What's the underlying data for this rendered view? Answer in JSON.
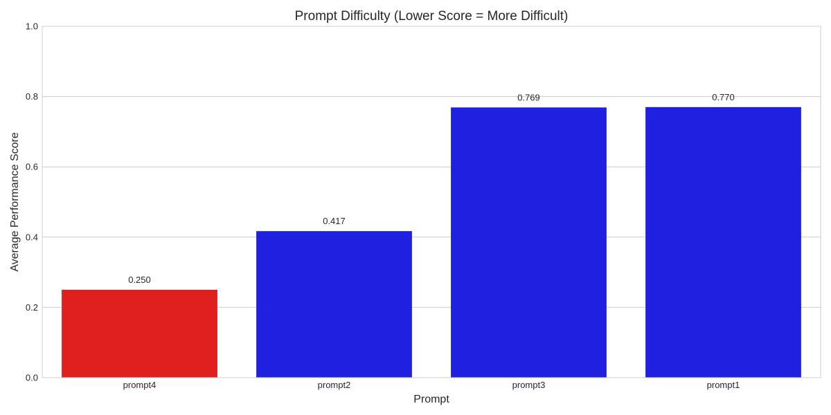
{
  "chart_data": {
    "type": "bar",
    "title": "Prompt Difficulty (Lower Score = More Difficult)",
    "xlabel": "Prompt",
    "ylabel": "Average Performance Score",
    "categories": [
      "prompt4",
      "prompt2",
      "prompt3",
      "prompt1"
    ],
    "values": [
      0.25,
      0.417,
      0.769,
      0.77
    ],
    "value_labels": [
      "0.250",
      "0.417",
      "0.769",
      "0.770"
    ],
    "bar_colors": [
      "#e01f1f",
      "#2020e0",
      "#2020e0",
      "#2020e0"
    ],
    "ylim": [
      0,
      1.0
    ],
    "yticks": [
      0.0,
      0.2,
      0.4,
      0.6,
      0.8,
      1.0
    ],
    "ytick_labels": [
      "0.0",
      "0.2",
      "0.4",
      "0.6",
      "0.8",
      "1.0"
    ],
    "grid": true,
    "legend": "none"
  }
}
